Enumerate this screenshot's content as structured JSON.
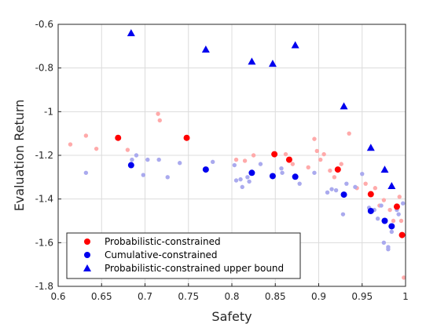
{
  "chart_data": {
    "type": "scatter",
    "xlabel": "Safety",
    "ylabel": "Evaluation Return",
    "xlim": [
      0.6,
      1.0
    ],
    "ylim": [
      -1.8,
      -0.6
    ],
    "x_ticks": [
      0.6,
      0.65,
      0.7,
      0.75,
      0.8,
      0.85,
      0.9,
      0.95,
      1.0
    ],
    "x_tick_labels": [
      "0.6",
      "0.65",
      "0.7",
      "0.75",
      "0.8",
      "0.85",
      "0.9",
      "0.95",
      "1"
    ],
    "y_ticks": [
      -1.8,
      -1.6,
      -1.4,
      -1.2,
      -1.0,
      -0.8,
      -0.6
    ],
    "y_tick_labels": [
      "-1.8",
      "-1.6",
      "-1.4",
      "-1.2",
      "-1",
      "-0.8",
      "-0.6"
    ],
    "grid": true,
    "legend_position": "bottom-left",
    "colors": {
      "red": "#ff0000",
      "blue": "#0000ee",
      "light_red": "#ffaaaa",
      "light_blue": "#aaaaee"
    },
    "series": [
      {
        "name": "Probabilistic-constrained",
        "marker": "circle",
        "color": "#ff0000",
        "points": [
          [
            0.669,
            -1.12
          ],
          [
            0.748,
            -1.12
          ],
          [
            0.849,
            -1.195
          ],
          [
            0.866,
            -1.22
          ],
          [
            0.922,
            -1.265
          ],
          [
            0.96,
            -1.378
          ],
          [
            0.99,
            -1.435
          ],
          [
            0.996,
            -1.565
          ]
        ]
      },
      {
        "name": "Cumulative-constrained",
        "marker": "circle",
        "color": "#0000ee",
        "points": [
          [
            0.684,
            -1.245
          ],
          [
            0.77,
            -1.265
          ],
          [
            0.823,
            -1.28
          ],
          [
            0.847,
            -1.295
          ],
          [
            0.873,
            -1.298
          ],
          [
            0.929,
            -1.38
          ],
          [
            0.96,
            -1.455
          ],
          [
            0.976,
            -1.5
          ],
          [
            0.984,
            -1.525
          ]
        ]
      },
      {
        "name": "Probabilistic-constrained upper bound",
        "marker": "triangle",
        "color": "#0000ee",
        "points": [
          [
            0.684,
            -0.64
          ],
          [
            0.77,
            -0.715
          ],
          [
            0.823,
            -0.77
          ],
          [
            0.847,
            -0.78
          ],
          [
            0.873,
            -0.695
          ],
          [
            0.929,
            -0.975
          ],
          [
            0.96,
            -1.165
          ],
          [
            0.976,
            -1.265
          ],
          [
            0.984,
            -1.34
          ]
        ]
      },
      {
        "marker": "small-circle",
        "color": "#ffaaaa",
        "points": [
          [
            0.614,
            -1.15
          ],
          [
            0.632,
            -1.11
          ],
          [
            0.644,
            -1.17
          ],
          [
            0.68,
            -1.175
          ],
          [
            0.715,
            -1.01
          ],
          [
            0.717,
            -1.04
          ],
          [
            0.805,
            -1.22
          ],
          [
            0.815,
            -1.225
          ],
          [
            0.825,
            -1.2
          ],
          [
            0.862,
            -1.195
          ],
          [
            0.867,
            -1.215
          ],
          [
            0.87,
            -1.24
          ],
          [
            0.888,
            -1.255
          ],
          [
            0.895,
            -1.125
          ],
          [
            0.898,
            -1.18
          ],
          [
            0.902,
            -1.22
          ],
          [
            0.906,
            -1.195
          ],
          [
            0.913,
            -1.27
          ],
          [
            0.918,
            -1.3
          ],
          [
            0.926,
            -1.24
          ],
          [
            0.935,
            -1.1
          ],
          [
            0.944,
            -1.35
          ],
          [
            0.954,
            -1.33
          ],
          [
            0.965,
            -1.35
          ],
          [
            0.97,
            -1.43
          ],
          [
            0.975,
            -1.405
          ],
          [
            0.982,
            -1.45
          ],
          [
            0.986,
            -1.5
          ],
          [
            0.993,
            -1.39
          ],
          [
            0.995,
            -1.5
          ],
          [
            0.998,
            -1.76
          ]
        ]
      },
      {
        "marker": "small-circle",
        "color": "#aaaaee",
        "points": [
          [
            0.632,
            -1.28
          ],
          [
            0.685,
            -1.22
          ],
          [
            0.69,
            -1.2
          ],
          [
            0.698,
            -1.29
          ],
          [
            0.703,
            -1.22
          ],
          [
            0.716,
            -1.22
          ],
          [
            0.726,
            -1.3
          ],
          [
            0.74,
            -1.235
          ],
          [
            0.778,
            -1.23
          ],
          [
            0.803,
            -1.245
          ],
          [
            0.805,
            -1.315
          ],
          [
            0.81,
            -1.31
          ],
          [
            0.812,
            -1.345
          ],
          [
            0.818,
            -1.3
          ],
          [
            0.82,
            -1.32
          ],
          [
            0.833,
            -1.24
          ],
          [
            0.857,
            -1.26
          ],
          [
            0.858,
            -1.28
          ],
          [
            0.878,
            -1.33
          ],
          [
            0.895,
            -1.28
          ],
          [
            0.91,
            -1.37
          ],
          [
            0.915,
            -1.355
          ],
          [
            0.92,
            -1.36
          ],
          [
            0.928,
            -1.47
          ],
          [
            0.932,
            -1.33
          ],
          [
            0.942,
            -1.345
          ],
          [
            0.95,
            -1.285
          ],
          [
            0.958,
            -1.44
          ],
          [
            0.964,
            -1.45
          ],
          [
            0.968,
            -1.49
          ],
          [
            0.972,
            -1.43
          ],
          [
            0.975,
            -1.6
          ],
          [
            0.98,
            -1.62
          ],
          [
            0.98,
            -1.63
          ],
          [
            0.984,
            -1.55
          ],
          [
            0.99,
            -1.45
          ],
          [
            0.992,
            -1.47
          ],
          [
            0.997,
            -1.42
          ]
        ]
      }
    ]
  }
}
